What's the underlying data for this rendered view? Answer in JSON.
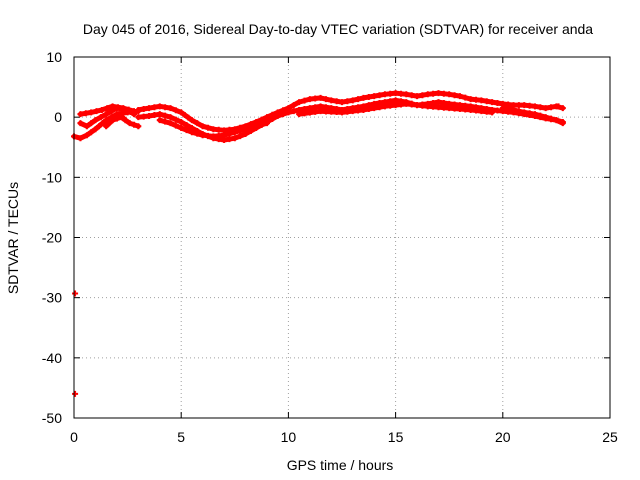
{
  "chart_data": {
    "type": "scatter",
    "title": "Day 045 of 2016, Sidereal Day-to-day VTEC variation (SDTVAR) for receiver anda",
    "xlabel": "GPS time / hours",
    "ylabel": "SDTVAR / TECUs",
    "xlim": [
      0,
      25
    ],
    "ylim": [
      -50,
      10
    ],
    "xticks": [
      0,
      5,
      10,
      15,
      20,
      25
    ],
    "yticks": [
      10,
      0,
      -10,
      -20,
      -30,
      -40,
      -50
    ],
    "grid": true,
    "marker_color": "#ff0000",
    "series": [
      {
        "name": "SDTVAR",
        "color": "#ff0000",
        "bands": [
          {
            "x": [
              0.0,
              0.3,
              0.6,
              1.0,
              1.5,
              2.0,
              2.5,
              3.0
            ],
            "y": [
              -3.2,
              -3.5,
              -3.0,
              -2.0,
              -0.5,
              0.5,
              0.8,
              1.0
            ]
          },
          {
            "x": [
              0.3,
              0.6,
              1.0,
              1.5,
              2.0,
              2.5,
              2.8
            ],
            "y": [
              -1.0,
              -1.5,
              -0.5,
              0.5,
              1.5,
              1.2,
              0.5
            ]
          },
          {
            "x": [
              0.3,
              0.8,
              1.3,
              1.8,
              2.3,
              2.8
            ],
            "y": [
              0.5,
              0.8,
              1.2,
              1.8,
              1.5,
              1.0
            ]
          },
          {
            "x": [
              1.5,
              1.8,
              2.1,
              2.4
            ],
            "y": [
              -1.5,
              -0.5,
              0.5,
              -0.5
            ]
          },
          {
            "x": [
              1.8,
              2.2,
              2.6,
              3.0
            ],
            "y": [
              -0.5,
              0.0,
              -1.0,
              -1.5
            ]
          },
          {
            "x": [
              3.0,
              3.5,
              4.0,
              4.5,
              5.0,
              5.5,
              6.0,
              6.5,
              7.0,
              7.5,
              8.0,
              8.5,
              9.0,
              9.5,
              10.0,
              10.5,
              11.0,
              11.5,
              12.0,
              12.5,
              13.0,
              13.5,
              14.0,
              14.5,
              15.0,
              15.5,
              16.0,
              16.5,
              17.0,
              17.5,
              18.0,
              18.5,
              19.0,
              19.5,
              20.0,
              20.5,
              21.0,
              21.5,
              22.0,
              22.5,
              22.8
            ],
            "y": [
              1.2,
              1.5,
              1.8,
              1.5,
              0.8,
              -0.5,
              -1.5,
              -2.0,
              -2.2,
              -2.0,
              -1.5,
              -0.8,
              0.0,
              0.8,
              1.5,
              2.5,
              3.0,
              3.2,
              2.8,
              2.5,
              2.8,
              3.2,
              3.5,
              3.8,
              4.0,
              3.8,
              3.5,
              3.8,
              4.0,
              3.8,
              3.5,
              3.0,
              2.8,
              2.5,
              2.2,
              2.0,
              2.0,
              1.8,
              1.5,
              1.8,
              1.5
            ]
          },
          {
            "x": [
              3.0,
              3.5,
              4.0,
              4.5,
              5.0,
              5.5,
              6.0,
              6.5,
              7.0,
              7.5,
              8.0,
              8.5,
              9.0,
              9.5,
              10.0,
              10.5,
              11.0,
              11.5,
              12.0,
              12.5,
              13.0,
              13.5,
              14.0,
              14.5,
              15.0,
              15.5,
              16.0,
              16.5,
              17.0,
              17.5,
              18.0,
              18.5,
              19.0,
              19.5,
              20.0,
              20.5,
              21.0,
              21.5,
              22.0,
              22.5,
              22.8
            ],
            "y": [
              0.0,
              0.2,
              0.5,
              0.0,
              -0.8,
              -1.8,
              -2.8,
              -3.5,
              -3.8,
              -3.5,
              -2.8,
              -1.8,
              -0.8,
              0.2,
              0.8,
              1.2,
              1.5,
              1.8,
              1.5,
              1.2,
              1.5,
              1.8,
              2.2,
              2.5,
              2.8,
              2.5,
              2.0,
              2.2,
              2.5,
              2.2,
              2.0,
              1.8,
              1.5,
              1.2,
              1.0,
              0.8,
              0.5,
              0.2,
              -0.2,
              -0.5,
              -0.8
            ]
          },
          {
            "x": [
              4.0,
              4.5,
              5.0,
              5.5,
              6.0,
              6.5,
              7.0,
              7.5,
              8.0,
              8.5,
              9.0
            ],
            "y": [
              -0.5,
              -1.0,
              -1.8,
              -2.5,
              -3.0,
              -3.2,
              -3.0,
              -2.5,
              -2.0,
              -1.5,
              -1.0
            ]
          },
          {
            "x": [
              10.5,
              11.5,
              12.5,
              13.5,
              14.5,
              15.5,
              16.5,
              17.5,
              18.5,
              19.5
            ],
            "y": [
              0.5,
              1.0,
              0.8,
              1.2,
              1.8,
              2.2,
              1.8,
              1.5,
              1.2,
              0.8
            ]
          },
          {
            "x": [
              20.0,
              20.5,
              21.0,
              21.5,
              22.0,
              22.5,
              22.8
            ],
            "y": [
              1.5,
              1.2,
              0.8,
              0.5,
              0.0,
              -0.5,
              -1.0
            ]
          }
        ],
        "outliers": [
          {
            "x": 0.05,
            "y": -29.3
          },
          {
            "x": 0.05,
            "y": -46.0
          },
          {
            "x": 22.6,
            "y": 1.8
          }
        ]
      }
    ]
  }
}
